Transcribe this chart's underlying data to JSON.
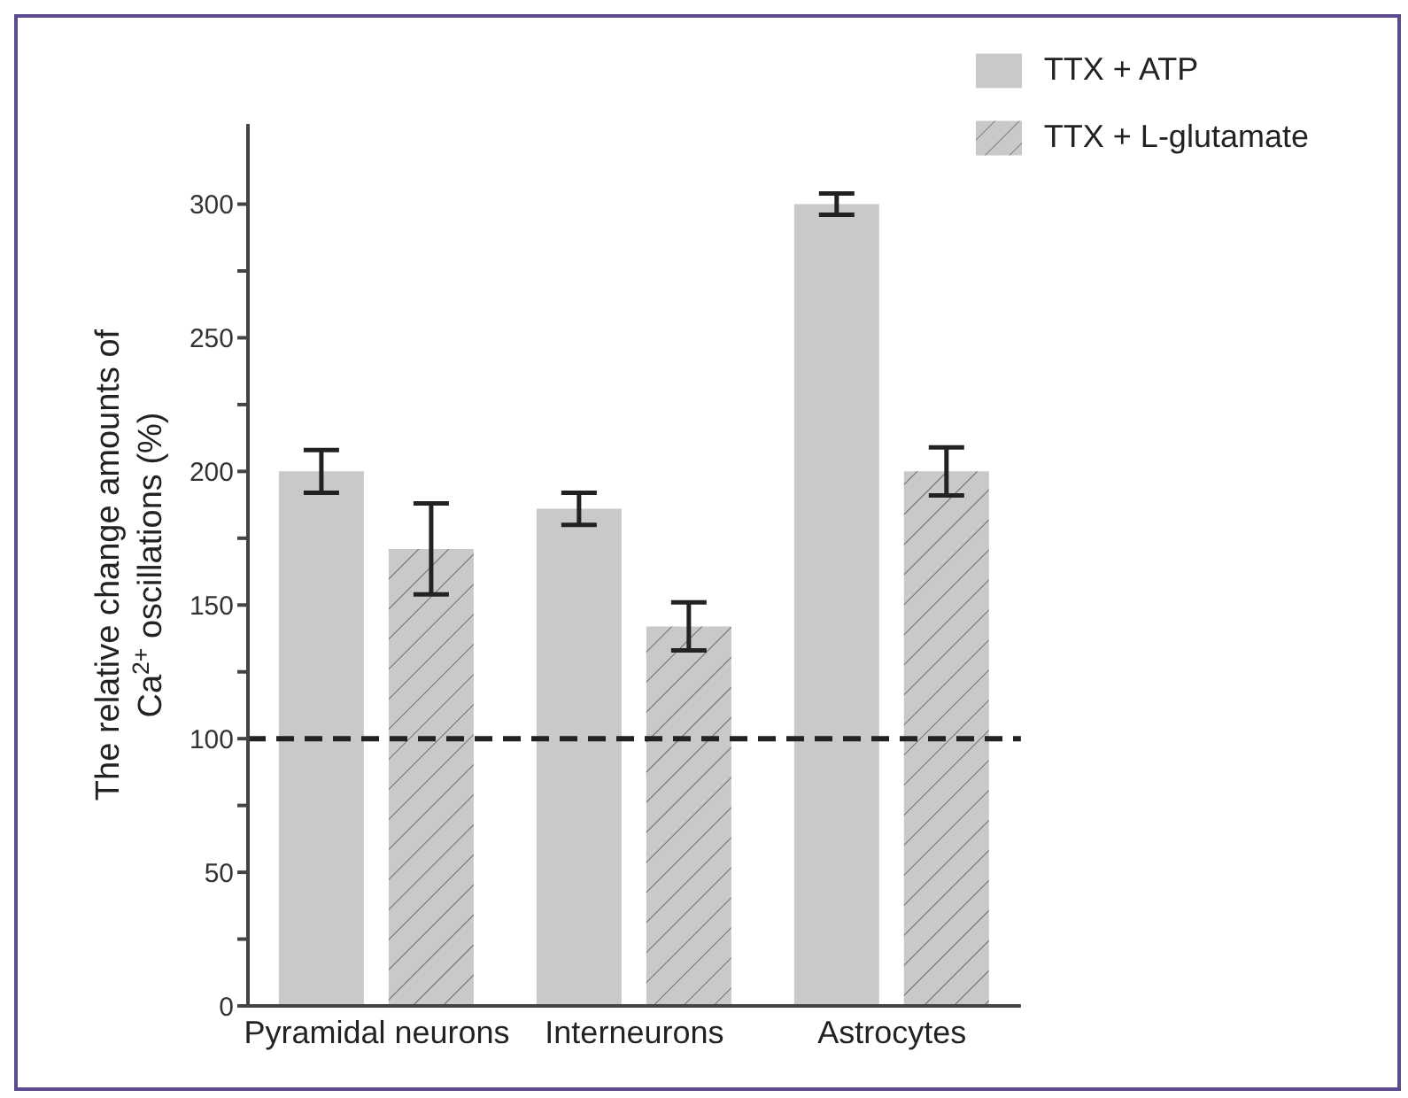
{
  "chart_data": {
    "type": "bar",
    "ylabel": "The relative change amounts of Ca$^{2+}$ oscillations (%)",
    "categories": [
      "Pyramidal neurons",
      "Interneurons",
      "Astrocytes"
    ],
    "series": [
      {
        "name": "TTX + ATP",
        "color": "#c8c9cb",
        "values": [
          200,
          186,
          300
        ],
        "errors": [
          8,
          6,
          4
        ]
      },
      {
        "name": "TTX + L-glutamate",
        "color": "#c8c9cb",
        "values": [
          171,
          142,
          200
        ],
        "errors": [
          17,
          9,
          9
        ]
      }
    ],
    "ylim": [
      0,
      330
    ],
    "yticks": [
      0,
      {
        "value": 25,
        "label": null
      },
      50,
      {
        "value": 75,
        "label": null
      },
      100,
      {
        "value": 125,
        "label": null
      },
      150,
      {
        "value": 175,
        "label": null
      },
      200,
      {
        "value": 225,
        "label": null
      },
      250,
      {
        "value": 275,
        "label": null
      },
      300
    ],
    "ref_lines": [
      {
        "axis": "y",
        "value": 100,
        "color": "#222222",
        "line_style": "dashed"
      }
    ],
    "grid": false,
    "legend": "top right"
  }
}
